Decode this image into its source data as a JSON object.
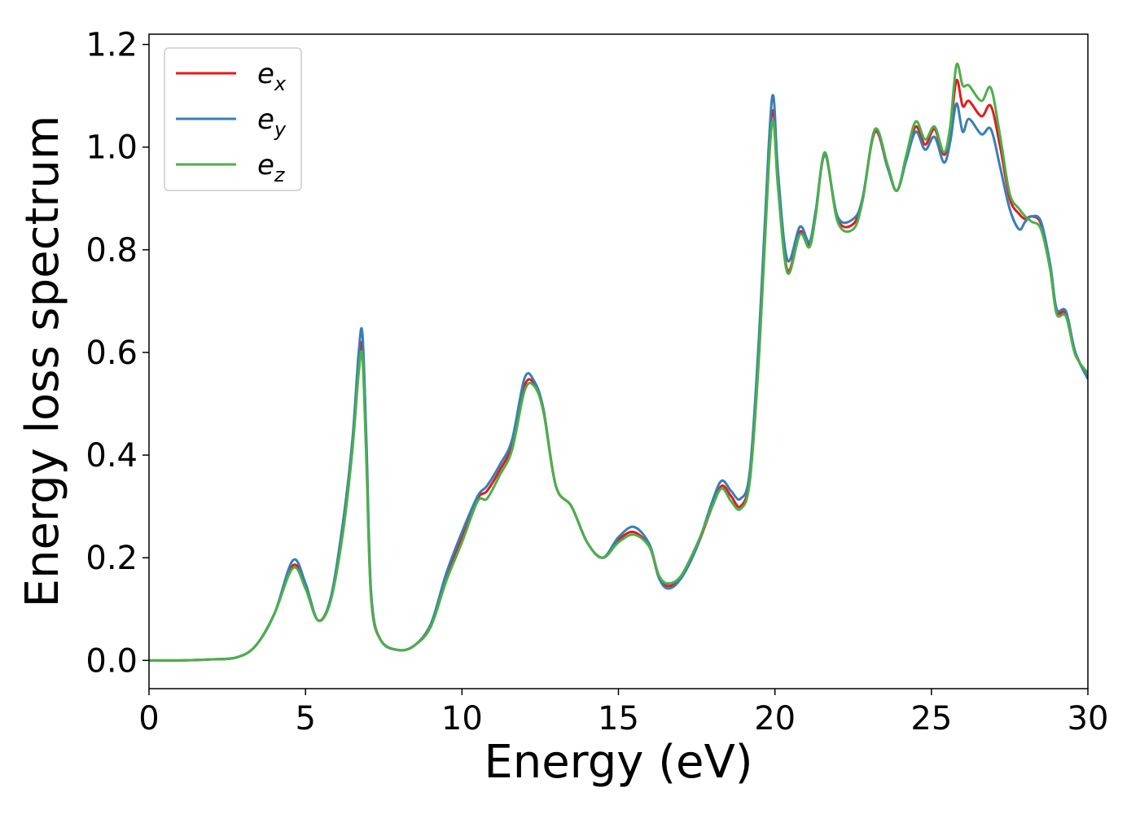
{
  "chart_data": {
    "type": "line",
    "title": "",
    "xlabel": "Energy (eV)",
    "ylabel": "Energy loss spectrum",
    "xlim": [
      0,
      30
    ],
    "ylim": [
      -0.055,
      1.22
    ],
    "xticks": [
      0,
      5,
      10,
      15,
      20,
      25,
      30
    ],
    "yticks": [
      0.0,
      0.2,
      0.4,
      0.6,
      0.8,
      1.0,
      1.2
    ],
    "xtick_labels": [
      "0",
      "5",
      "10",
      "15",
      "20",
      "25",
      "30"
    ],
    "ytick_labels": [
      "0.0",
      "0.2",
      "0.4",
      "0.6",
      "0.8",
      "1.0",
      "1.2"
    ],
    "grid": false,
    "legend_position": "top-left",
    "x": [
      0,
      1,
      2,
      2.8,
      3.4,
      4.0,
      4.6,
      5.0,
      5.4,
      5.8,
      6.2,
      6.5,
      6.7,
      6.82,
      6.95,
      7.1,
      7.4,
      8.0,
      8.5,
      9.0,
      9.5,
      10.0,
      10.5,
      10.8,
      11.2,
      11.6,
      12.0,
      12.3,
      12.6,
      13.0,
      13.5,
      14.0,
      14.5,
      15.0,
      15.5,
      16.0,
      16.3,
      16.6,
      17.0,
      17.5,
      18.0,
      18.3,
      18.6,
      18.9,
      19.2,
      19.5,
      19.8,
      19.95,
      20.1,
      20.4,
      20.8,
      21.1,
      21.3,
      21.6,
      22.0,
      22.5,
      22.8,
      23.2,
      23.6,
      23.9,
      24.2,
      24.5,
      24.8,
      25.1,
      25.4,
      25.6,
      25.8,
      26.0,
      26.2,
      26.6,
      26.9,
      27.2,
      27.5,
      27.8,
      28.0,
      28.2,
      28.5,
      28.8,
      29.0,
      29.3,
      29.6,
      30.0
    ],
    "series": [
      {
        "name": "e_x",
        "label_base": "e",
        "label_sub": "x",
        "color": "#e41a1c",
        "values": [
          0.0,
          0.0,
          0.002,
          0.006,
          0.028,
          0.09,
          0.185,
          0.145,
          0.078,
          0.12,
          0.26,
          0.42,
          0.57,
          0.61,
          0.4,
          0.12,
          0.04,
          0.02,
          0.03,
          0.07,
          0.16,
          0.24,
          0.315,
          0.33,
          0.37,
          0.42,
          0.535,
          0.54,
          0.49,
          0.34,
          0.3,
          0.23,
          0.2,
          0.235,
          0.25,
          0.22,
          0.16,
          0.145,
          0.16,
          0.22,
          0.3,
          0.34,
          0.32,
          0.3,
          0.36,
          0.62,
          0.98,
          1.07,
          0.93,
          0.76,
          0.835,
          0.81,
          0.87,
          0.985,
          0.86,
          0.85,
          0.9,
          1.03,
          0.96,
          0.915,
          0.98,
          1.04,
          1.005,
          1.035,
          0.985,
          1.03,
          1.13,
          1.08,
          1.09,
          1.06,
          1.08,
          1.0,
          0.9,
          0.87,
          0.86,
          0.865,
          0.85,
          0.76,
          0.68,
          0.675,
          0.6,
          0.55
        ]
      },
      {
        "name": "e_y",
        "label_base": "e",
        "label_sub": "y",
        "color": "#377eb8",
        "values": [
          0.0,
          0.0,
          0.002,
          0.006,
          0.028,
          0.09,
          0.195,
          0.15,
          0.078,
          0.12,
          0.27,
          0.43,
          0.6,
          0.635,
          0.42,
          0.13,
          0.04,
          0.02,
          0.03,
          0.07,
          0.17,
          0.25,
          0.32,
          0.34,
          0.38,
          0.43,
          0.55,
          0.545,
          0.49,
          0.34,
          0.3,
          0.23,
          0.2,
          0.24,
          0.26,
          0.225,
          0.16,
          0.14,
          0.16,
          0.22,
          0.31,
          0.35,
          0.33,
          0.315,
          0.37,
          0.64,
          1.0,
          1.1,
          0.95,
          0.78,
          0.845,
          0.815,
          0.875,
          0.985,
          0.865,
          0.86,
          0.9,
          1.035,
          0.96,
          0.915,
          0.975,
          1.03,
          0.995,
          1.02,
          0.97,
          1.01,
          1.085,
          1.03,
          1.055,
          1.025,
          1.035,
          0.96,
          0.88,
          0.84,
          0.855,
          0.865,
          0.855,
          0.77,
          0.685,
          0.68,
          0.6,
          0.548
        ]
      },
      {
        "name": "e_z",
        "label_base": "e",
        "label_sub": "z",
        "color": "#4daf4a",
        "values": [
          0.0,
          0.0,
          0.002,
          0.006,
          0.028,
          0.09,
          0.18,
          0.14,
          0.078,
          0.115,
          0.25,
          0.41,
          0.56,
          0.59,
          0.38,
          0.12,
          0.04,
          0.02,
          0.03,
          0.065,
          0.155,
          0.23,
          0.31,
          0.315,
          0.36,
          0.41,
          0.525,
          0.535,
          0.485,
          0.34,
          0.3,
          0.23,
          0.2,
          0.23,
          0.245,
          0.22,
          0.165,
          0.15,
          0.165,
          0.225,
          0.3,
          0.335,
          0.31,
          0.295,
          0.35,
          0.6,
          0.96,
          1.05,
          0.92,
          0.755,
          0.83,
          0.805,
          0.865,
          0.99,
          0.855,
          0.84,
          0.895,
          1.035,
          0.965,
          0.915,
          0.985,
          1.05,
          1.015,
          1.04,
          0.99,
          1.04,
          1.16,
          1.12,
          1.12,
          1.09,
          1.115,
          1.02,
          0.91,
          0.88,
          0.865,
          0.855,
          0.84,
          0.76,
          0.675,
          0.67,
          0.595,
          0.56
        ]
      }
    ]
  }
}
